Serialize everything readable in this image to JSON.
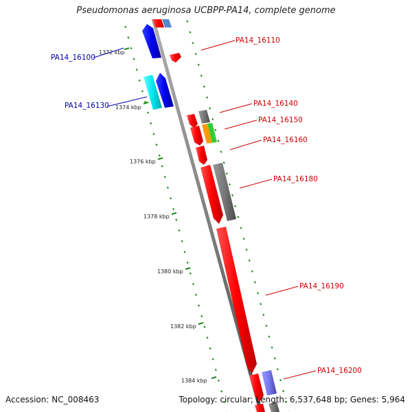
{
  "title": "Pseudomonas aeruginosa UCBPP-PA14, complete genome",
  "accession": "Accession: NC_008463",
  "summary": "Topology: circular; Length: 6,537,648 bp; Genes: 5,964",
  "ticks": [
    "1372 kbp",
    "1374 kbp",
    "1376 kbp",
    "1378 kbp",
    "1380 kbp",
    "1382 kbp",
    "1384 kbp"
  ],
  "genes": [
    {
      "label": "PA14_16100",
      "color": "#0000dd",
      "strand": "inner",
      "side": "left"
    },
    {
      "label": "PA14_16110",
      "color": "#ee0000",
      "strand": "outer",
      "side": "right"
    },
    {
      "label": "PA14_16130",
      "color": "#0000dd",
      "strand": "inner",
      "side": "left"
    },
    {
      "label": "PA14_16140",
      "color": "#ee0000",
      "strand": "outer",
      "side": "right"
    },
    {
      "label": "PA14_16150",
      "color": "#ee0000",
      "strand": "outer",
      "side": "right"
    },
    {
      "label": "PA14_16160",
      "color": "#ee0000",
      "strand": "outer",
      "side": "right"
    },
    {
      "label": "PA14_16180",
      "color": "#ee0000",
      "strand": "outer",
      "side": "right"
    },
    {
      "label": "PA14_16190",
      "color": "#ee0000",
      "strand": "outer",
      "side": "right"
    },
    {
      "label": "PA14_16200",
      "color": "#ee0000",
      "strand": "outer",
      "side": "right"
    }
  ],
  "colors": {
    "backbone": "#808080",
    "forward_gene": "#ee0000",
    "reverse_gene": "#0000dd",
    "other_gene_gray": "#707070",
    "other_gene_cyan": "#00e5ee",
    "other_gene_orange": "#ff9900",
    "other_gene_green": "#33cc33",
    "other_gene_purple": "#7777ee",
    "tick": "#1a8a1a",
    "label_forward": "#cc0000",
    "label_reverse": "#0000aa"
  }
}
